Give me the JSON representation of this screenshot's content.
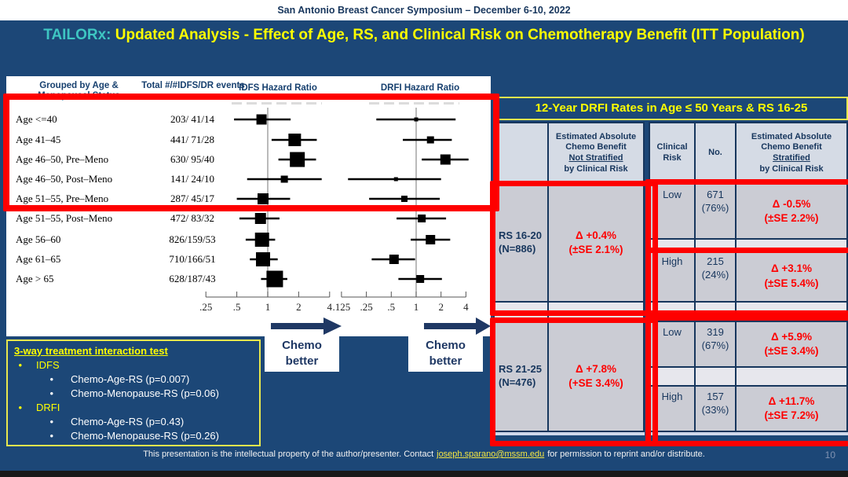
{
  "header": {
    "symposium": "San Antonio Breast Cancer Symposium – December 6-10, 2022",
    "title_prefix": "TAILORx:",
    "title_rest": "Updated Analysis - Effect of Age, RS, and Clinical Risk on Chemotherapy Benefit (ITT Population)"
  },
  "colors": {
    "background_navy": "#1c4777",
    "accent_red": "#fe0000",
    "accent_yellow": "#ffff00",
    "accent_teal": "#3ec6c2",
    "table_border_navy": "#17365d",
    "cell_gray": "#cbccd4",
    "header_cell_gray": "#d5dbe5"
  },
  "chart_data": {
    "type": "forest",
    "title": "",
    "columns": [
      "Grouped by Age & Menopausal Status",
      "Total #/#IDFS/DR events",
      "IDFS Hazard Ratio",
      "DRFI  Hazard Ratio"
    ],
    "axes": {
      "scale": "log2",
      "idfs_ticks": [
        0.25,
        0.5,
        1,
        2,
        4
      ],
      "drfi_ticks": [
        0.125,
        0.25,
        0.5,
        1,
        2,
        4
      ],
      "reference_line": 1
    },
    "direction_label": "Chemo better",
    "rows": [
      {
        "label": "Age <=40",
        "events": "203/ 41/14",
        "idfs": {
          "hr": 0.87,
          "lo": 0.47,
          "hi": 1.67,
          "size": 13
        },
        "drfi": {
          "hr": 1.0,
          "lo": 0.33,
          "hi": 3.0,
          "size": 5
        }
      },
      {
        "label": "Age 41–45",
        "events": "441/ 71/28",
        "idfs": {
          "hr": 1.83,
          "lo": 1.09,
          "hi": 3.0,
          "size": 16
        },
        "drfi": {
          "hr": 1.49,
          "lo": 0.69,
          "hi": 2.7,
          "size": 9
        }
      },
      {
        "label": "Age 46–50, Pre–Meno",
        "events": "630/ 95/40",
        "idfs": {
          "hr": 1.94,
          "lo": 1.27,
          "hi": 2.95,
          "size": 19
        },
        "drfi": {
          "hr": 2.26,
          "lo": 1.17,
          "hi": 4.3,
          "size": 13
        }
      },
      {
        "label": "Age 46–50, Post–Meno",
        "events": "141/ 24/10",
        "idfs": {
          "hr": 1.45,
          "lo": 0.63,
          "hi": 3.35,
          "size": 9
        },
        "drfi": {
          "hr": 0.57,
          "lo": 0.15,
          "hi": 2.0,
          "size": 5
        }
      },
      {
        "label": "Age 51–55, Pre–Meno",
        "events": "287/ 45/17",
        "idfs": {
          "hr": 0.9,
          "lo": 0.5,
          "hi": 1.65,
          "size": 14
        },
        "drfi": {
          "hr": 0.72,
          "lo": 0.27,
          "hi": 1.93,
          "size": 8
        }
      },
      {
        "label": "Age 51–55, Post–Meno",
        "events": "472/ 83/32",
        "idfs": {
          "hr": 0.85,
          "lo": 0.53,
          "hi": 1.3,
          "size": 14
        },
        "drfi": {
          "hr": 1.17,
          "lo": 0.58,
          "hi": 2.3,
          "size": 10
        }
      },
      {
        "label": "Age 56–60",
        "events": "826/159/53",
        "idfs": {
          "hr": 0.88,
          "lo": 0.61,
          "hi": 1.18,
          "size": 18
        },
        "drfi": {
          "hr": 1.49,
          "lo": 0.86,
          "hi": 2.58,
          "size": 12
        }
      },
      {
        "label": "Age 61–65",
        "events": "710/166/51",
        "idfs": {
          "hr": 0.9,
          "lo": 0.67,
          "hi": 1.25,
          "size": 18
        },
        "drfi": {
          "hr": 0.54,
          "lo": 0.29,
          "hi": 0.97,
          "size": 12
        }
      },
      {
        "label": "Age > 65",
        "events": "628/187/43",
        "idfs": {
          "hr": 1.17,
          "lo": 0.86,
          "hi": 1.55,
          "size": 21
        },
        "drfi": {
          "hr": 1.12,
          "lo": 0.61,
          "hi": 2.05,
          "size": 10
        }
      }
    ]
  },
  "drfi_table": {
    "title": "12-Year DRFI Rates in Age ≤ 50 Years  & RS 16-25",
    "headers": {
      "unstrat": [
        "Estimated Absolute",
        "Chemo Benefit",
        "Not Stratified",
        "by Clinical Risk"
      ],
      "clinical_risk": "Clinical Risk",
      "no": "No.",
      "strat": [
        "Estimated Absolute",
        "Chemo Benefit",
        "Stratified",
        "by Clinical Risk"
      ]
    },
    "blocks": [
      {
        "rs": "RS 16-20",
        "n": "(N=886)",
        "delta": "Δ +0.4%",
        "se": "(±SE 2.1%)",
        "rows": [
          {
            "risk": "Low",
            "n1": "671",
            "n2": "(76%)",
            "delta": "Δ -0.5%",
            "se": "(±SE 2.2%)"
          },
          {
            "risk": "High",
            "n1": "215",
            "n2": "(24%)",
            "delta": "Δ +3.1%",
            "se": "(±SE 5.4%)"
          }
        ]
      },
      {
        "rs": "RS 21-25",
        "n": "(N=476)",
        "delta": "Δ +7.8%",
        "se": "(+SE 3.4%)",
        "rows": [
          {
            "risk": "Low",
            "n1": "319",
            "n2": "(67%)",
            "delta": "Δ +5.9%",
            "se": "(±SE 3.4%)"
          },
          {
            "risk": "High",
            "n1": "157",
            "n2": "(33%)",
            "delta": "Δ +11.7%",
            "se": "(±SE 7.2%)"
          }
        ]
      }
    ]
  },
  "interaction": {
    "title": "3-way treatment interaction test",
    "items": [
      {
        "label": "IDFS",
        "subs": [
          "Chemo-Age-RS (p=0.007)",
          "Chemo-Menopause-RS (p=0.06)"
        ]
      },
      {
        "label": "DRFI",
        "subs": [
          "Chemo-Age-RS (p=0.43)",
          "Chemo-Menopause-RS (p=0.26)"
        ]
      }
    ]
  },
  "footer": {
    "text_before": "This presentation is the intellectual property of the author/presenter. Contact",
    "email": "joseph.sparano@mssm.edu",
    "text_after": "for permission to reprint and/or distribute."
  },
  "page_number": "10"
}
